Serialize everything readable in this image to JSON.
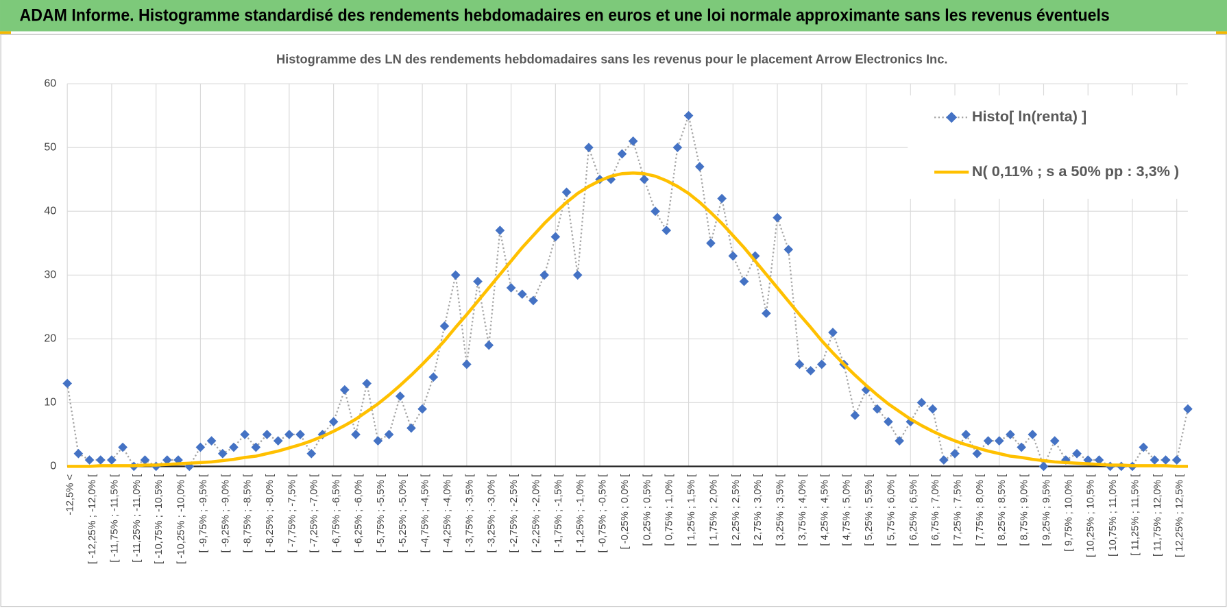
{
  "header": {
    "title": "ADAM Informe. Histogramme standardisé des rendements hebdomadaires en euros et une loi normale approximante sans les revenus éventuels"
  },
  "chart_data": {
    "type": "line",
    "title": "Histogramme des LN des rendements hebdomadaires sans les revenus pour le placement Arrow Electronics Inc.",
    "categories": [
      "-12,5% <",
      null,
      "[ -12,25% ; -12,0% [",
      null,
      "[ -11,75% ; -11,5% [",
      null,
      "[ -11,25% ; -11,0% [",
      null,
      "[ -10,75% ; -10,5% [",
      null,
      "[ -10,25% ; -10,0% [",
      null,
      "[ -9,75% ; -9,5% [",
      null,
      "[ -9,25% ; -9,0% [",
      null,
      "[ -8,75% ; -8,5% [",
      null,
      "[ -8,25% ; -8,0% [",
      null,
      "[ -7,75% ; -7,5% [",
      null,
      "[ -7,25% ; -7,0% [",
      null,
      "[ -6,75% ; -6,5% [",
      null,
      "[ -6,25% ; -6,0% [",
      null,
      "[ -5,75% ; -5,5% [",
      null,
      "[ -5,25% ; -5,0% [",
      null,
      "[ -4,75% ; -4,5% [",
      null,
      "[ -4,25% ; -4,0% [",
      null,
      "[ -3,75% ; -3,5% [",
      null,
      "[ -3,25% ; -3,0% [",
      null,
      "[ -2,75% ; -2,5% [",
      null,
      "[ -2,25% ; -2,0% [",
      null,
      "[ -1,75% ; -1,5% [",
      null,
      "[ -1,25% ; -1,0% [",
      null,
      "[ -0,75% ; -0,5% [",
      null,
      "[ -0,25% ; 0,0% [",
      null,
      "[ 0,25% ; 0,5% [",
      null,
      "[ 0,75% ; 1,0% [",
      null,
      "[ 1,25% ; 1,5% [",
      null,
      "[ 1,75% ; 2,0% [",
      null,
      "[ 2,25% ; 2,5% [",
      null,
      "[ 2,75% ; 3,0% [",
      null,
      "[ 3,25% ; 3,5% [",
      null,
      "[ 3,75% ; 4,0% [",
      null,
      "[ 4,25% ; 4,5% [",
      null,
      "[ 4,75% ; 5,0% [",
      null,
      "[ 5,25% ; 5,5% [",
      null,
      "[ 5,75% ; 6,0% [",
      null,
      "[ 6,25% ; 6,5% [",
      null,
      "[ 6,75% ; 7,0% [",
      null,
      "[ 7,25% ; 7,5% [",
      null,
      "[ 7,75% ; 8,0% [",
      null,
      "[ 8,25% ; 8,5% [",
      null,
      "[ 8,75% ; 9,0% [",
      null,
      "[ 9,25% ; 9,5% [",
      null,
      "[ 9,75% ; 10,0% [",
      null,
      "[ 10,25% ; 10,5% [",
      null,
      "[ 10,75% ; 11,0% [",
      null,
      "[ 11,25% ; 11,5% [",
      null,
      "[ 11,75% ; 12,0% [",
      null,
      "[ 12,25% ; 12,5% [",
      null
    ],
    "series": [
      {
        "name": "Histo[ ln(renta) ]",
        "color": "#4472c4",
        "line_color": "#a5a5a5",
        "marker": "diamond",
        "values": [
          13,
          2,
          1,
          1,
          1,
          3,
          0,
          1,
          0,
          1,
          1,
          0,
          3,
          4,
          2,
          3,
          5,
          3,
          5,
          4,
          5,
          5,
          2,
          5,
          7,
          12,
          5,
          13,
          4,
          5,
          11,
          6,
          9,
          14,
          22,
          30,
          16,
          29,
          19,
          37,
          28,
          27,
          26,
          30,
          36,
          43,
          30,
          50,
          45,
          45,
          49,
          51,
          45,
          40,
          37,
          50,
          55,
          47,
          35,
          42,
          33,
          29,
          33,
          24,
          39,
          34,
          16,
          15,
          16,
          21,
          16,
          8,
          12,
          9,
          7,
          4,
          7,
          10,
          9,
          1,
          2,
          5,
          2,
          4,
          4,
          5,
          3,
          5,
          0,
          4,
          1,
          2,
          1,
          1,
          0,
          0,
          0,
          3,
          1,
          1,
          1,
          9
        ]
      },
      {
        "name": "N( 0,11% ; s a 50% pp : 3,3% )",
        "color": "#ffc000",
        "values": [
          0,
          0,
          0,
          0.1,
          0.1,
          0.1,
          0.1,
          0.2,
          0.2,
          0.3,
          0.4,
          0.5,
          0.6,
          0.7,
          0.9,
          1.1,
          1.4,
          1.6,
          2.0,
          2.4,
          2.9,
          3.4,
          4.0,
          4.7,
          5.5,
          6.4,
          7.4,
          8.6,
          9.8,
          11.2,
          12.7,
          14.3,
          16.0,
          17.8,
          19.7,
          21.8,
          23.8,
          25.9,
          28.0,
          30.1,
          32.2,
          34.3,
          36.2,
          38.1,
          39.8,
          41.4,
          42.8,
          43.9,
          44.8,
          45.5,
          45.9,
          46,
          45.9,
          45.5,
          44.8,
          43.9,
          42.8,
          41.4,
          39.8,
          38.1,
          36.2,
          34.3,
          32.2,
          30.1,
          28.0,
          25.9,
          23.8,
          21.8,
          19.7,
          17.8,
          16.0,
          14.3,
          12.7,
          11.2,
          9.8,
          8.6,
          7.4,
          6.4,
          5.5,
          4.7,
          4.0,
          3.4,
          2.9,
          2.4,
          2.0,
          1.6,
          1.4,
          1.1,
          0.9,
          0.7,
          0.6,
          0.5,
          0.4,
          0.3,
          0.2,
          0.2,
          0.1,
          0.1,
          0.1,
          0.1,
          0,
          0
        ]
      }
    ],
    "ylim": [
      0,
      60
    ],
    "yticks": [
      0,
      10,
      20,
      30,
      40,
      50,
      60
    ],
    "grid": true,
    "legend": "upper right"
  }
}
